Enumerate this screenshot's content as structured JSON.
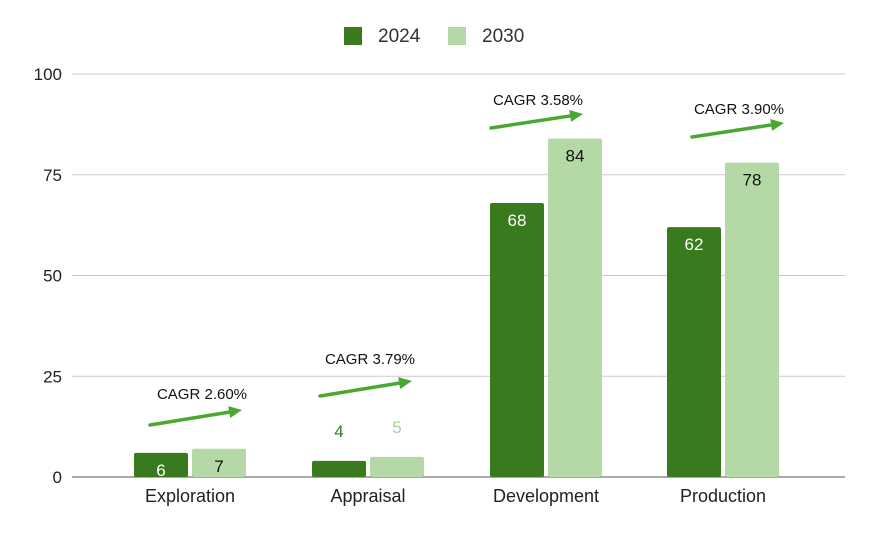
{
  "chart_data": {
    "type": "bar",
    "categories": [
      "Exploration",
      "Appraisal",
      "Development",
      "Production"
    ],
    "series": [
      {
        "name": "2024",
        "values": [
          6,
          4,
          68,
          62
        ],
        "color": "#3a7a1e"
      },
      {
        "name": "2030",
        "values": [
          7,
          5,
          84,
          78
        ],
        "color": "#b5d9a6"
      }
    ],
    "annotations": [
      "CAGR 2.60%",
      "CAGR 3.79%",
      "CAGR 3.58%",
      "CAGR 3.90%"
    ],
    "arrow_color": "#4aa832",
    "ylim": [
      0,
      100
    ],
    "yticks": [
      0,
      25,
      50,
      75,
      100
    ],
    "grid": true,
    "legend_position": "top-center",
    "value_label_colors": {
      "inside_dark": "#ffffff",
      "inside_light": "#111111",
      "outside_dark": "#3a7a1e",
      "outside_light": "#a8d29a"
    }
  }
}
